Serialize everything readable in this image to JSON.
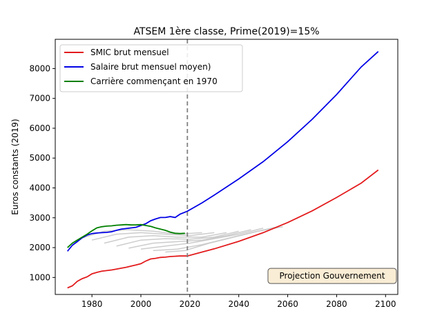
{
  "chart_data": {
    "type": "line",
    "title": "ATSEM 1ère classe, Prime(2019)=15%",
    "xlabel": "",
    "ylabel": "Euros constants (2019)",
    "xlim": [
      1965,
      2105
    ],
    "ylim": [
      430,
      8980
    ],
    "xticks": [
      1980,
      2000,
      2020,
      2040,
      2060,
      2080,
      2100
    ],
    "yticks": [
      1000,
      2000,
      3000,
      4000,
      5000,
      6000,
      7000,
      8000
    ],
    "grid": false,
    "legend_position": "top-left",
    "colors": {
      "smic": "#e31a1c",
      "salaire": "#0000e6",
      "carriere": "#008000",
      "gray": "#cccccc",
      "vline": "#808080"
    },
    "vline": {
      "x": 2019
    },
    "annotation": {
      "text": "Projection Gouvernement",
      "x": 2070,
      "y": 1050
    },
    "series": [
      {
        "name": "SMIC brut mensuel",
        "color": "#e31a1c",
        "x": [
          1970,
          1972,
          1974,
          1976,
          1978,
          1980,
          1982,
          1984,
          1986,
          1988,
          1990,
          1992,
          1994,
          1996,
          1998,
          2000,
          2002,
          2004,
          2006,
          2008,
          2010,
          2012,
          2014,
          2016,
          2019,
          2025,
          2030,
          2040,
          2050,
          2060,
          2070,
          2080,
          2090,
          2097
        ],
        "y": [
          650,
          720,
          870,
          960,
          1020,
          1120,
          1170,
          1210,
          1230,
          1250,
          1280,
          1310,
          1340,
          1380,
          1420,
          1460,
          1550,
          1620,
          1640,
          1670,
          1680,
          1700,
          1710,
          1720,
          1720,
          1850,
          1960,
          2210,
          2500,
          2840,
          3230,
          3680,
          4160,
          4600
        ]
      },
      {
        "name": "Salaire brut mensuel moyen)",
        "color": "#0000e6",
        "x": [
          1970,
          1972,
          1974,
          1976,
          1978,
          1980,
          1982,
          1984,
          1986,
          1988,
          1990,
          1992,
          1994,
          1996,
          1998,
          2000,
          2002,
          2004,
          2006,
          2008,
          2010,
          2012,
          2014,
          2016,
          2019,
          2025,
          2030,
          2040,
          2050,
          2060,
          2070,
          2080,
          2090,
          2097
        ],
        "y": [
          1880,
          2080,
          2200,
          2330,
          2420,
          2470,
          2490,
          2500,
          2510,
          2530,
          2580,
          2620,
          2640,
          2660,
          2680,
          2740,
          2800,
          2900,
          2960,
          3010,
          3010,
          3040,
          3010,
          3120,
          3220,
          3500,
          3760,
          4300,
          4880,
          5550,
          6300,
          7130,
          8050,
          8570
        ]
      },
      {
        "name": "Carrière commençant en 1970",
        "color": "#008000",
        "x": [
          1970,
          1972,
          1974,
          1976,
          1978,
          1980,
          1982,
          1984,
          1986,
          1988,
          1990,
          1992,
          1994,
          1996,
          1998,
          2000,
          2002,
          2004,
          2006,
          2008,
          2010,
          2012,
          2014,
          2016,
          2018
        ],
        "y": [
          2000,
          2150,
          2250,
          2350,
          2450,
          2560,
          2660,
          2700,
          2720,
          2730,
          2750,
          2760,
          2770,
          2760,
          2760,
          2770,
          2740,
          2710,
          2660,
          2620,
          2580,
          2520,
          2480,
          2470,
          2480
        ]
      }
    ],
    "background_series": [
      {
        "x": [
          1975,
          1985,
          1995,
          2005,
          2015,
          2025
        ],
        "y": [
          2300,
          2550,
          2600,
          2550,
          2450,
          2500
        ]
      },
      {
        "x": [
          1980,
          1990,
          2000,
          2010,
          2020,
          2030
        ],
        "y": [
          2250,
          2450,
          2500,
          2450,
          2400,
          2500
        ]
      },
      {
        "x": [
          1985,
          1995,
          2005,
          2015,
          2025,
          2035
        ],
        "y": [
          2150,
          2350,
          2400,
          2350,
          2350,
          2500
        ]
      },
      {
        "x": [
          1990,
          2000,
          2010,
          2020,
          2030,
          2040
        ],
        "y": [
          2050,
          2250,
          2300,
          2280,
          2350,
          2550
        ]
      },
      {
        "x": [
          1995,
          2005,
          2015,
          2025,
          2035,
          2045
        ],
        "y": [
          1980,
          2150,
          2200,
          2250,
          2400,
          2600
        ]
      },
      {
        "x": [
          2000,
          2010,
          2020,
          2030,
          2040,
          2050
        ],
        "y": [
          1950,
          2050,
          2150,
          2300,
          2450,
          2650
        ]
      },
      {
        "x": [
          2005,
          2015,
          2025,
          2035,
          2045,
          2055
        ],
        "y": [
          1900,
          1950,
          2100,
          2300,
          2500,
          2680
        ]
      },
      {
        "x": [
          2010,
          2018,
          2028,
          2038,
          2048,
          2058
        ],
        "y": [
          1850,
          1900,
          2150,
          2350,
          2550,
          2700
        ]
      }
    ]
  }
}
